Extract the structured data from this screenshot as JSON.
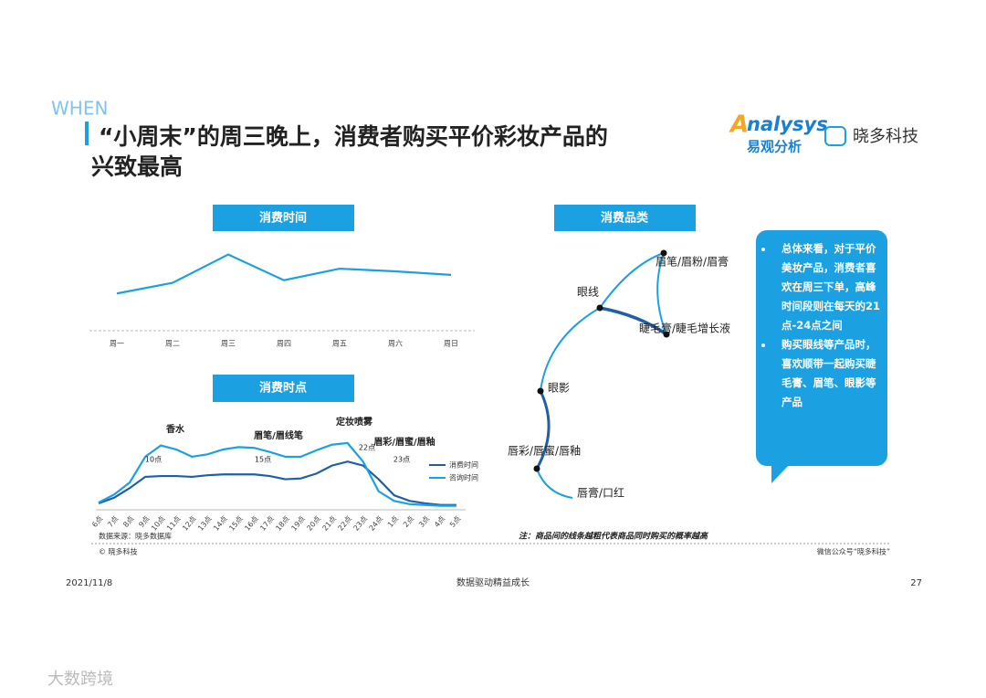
{
  "header": {
    "tag": "WHEN",
    "title_lines": [
      "“小周末”的周三晚上，消费者购买平价彩妆产品的",
      "兴致最高"
    ]
  },
  "logos": {
    "analysys_mark": "A",
    "analysys_name": "nalysys",
    "analysys_cn": "易观分析",
    "xiaoduo": "晓多科技"
  },
  "chart_data": [
    {
      "type": "line",
      "title": "消费时间",
      "categories": [
        "周一",
        "周二",
        "周三",
        "周四",
        "周五",
        "周六",
        "周日"
      ],
      "values": [
        42,
        54,
        86,
        57,
        70,
        67,
        63
      ],
      "color": "#1ba1e2",
      "ylim": [
        0,
        100
      ]
    },
    {
      "type": "line",
      "title": "消费时点",
      "categories": [
        "6点",
        "7点",
        "8点",
        "9点",
        "10点",
        "11点",
        "12点",
        "13点",
        "14点",
        "15点",
        "16点",
        "17点",
        "18点",
        "19点",
        "20点",
        "21点",
        "22点",
        "23点",
        "24点",
        "1点",
        "2点",
        "3点",
        "4点",
        "5点"
      ],
      "series": [
        {
          "name": "消费时间",
          "color": "#1f5fa8",
          "values": [
            8,
            15,
            27,
            41,
            42,
            42,
            41,
            43,
            44,
            44,
            44,
            42,
            38,
            39,
            45,
            55,
            60,
            55,
            38,
            18,
            11,
            8,
            6,
            6
          ]
        },
        {
          "name": "咨询时间",
          "color": "#1ba1e2",
          "values": [
            9,
            19,
            34,
            66,
            80,
            75,
            66,
            69,
            75,
            78,
            77,
            72,
            66,
            66,
            74,
            81,
            83,
            60,
            23,
            11,
            7,
            6,
            5,
            5
          ]
        }
      ],
      "ylim": [
        0,
        100
      ],
      "annotations": [
        "香水",
        "眉笔/眉线笔",
        "定妆喷雾",
        "眉彩/眉蜜/眉釉",
        "10点",
        "15点",
        "22点",
        "23点"
      ],
      "source": "数据来源：晓多数据库"
    }
  ],
  "diagram": {
    "title": "消费品类",
    "nodes": [
      "眉笔/眉粉/眉膏",
      "眼线",
      "睫毛膏/睫毛增长液",
      "眼影",
      "唇彩/唇蜜/唇釉",
      "唇膏/口红"
    ],
    "note": "注：商品间的线条越粗代表商品同时购买的概率越高"
  },
  "callout": {
    "bullets": [
      "总体来看，对于平价美妆产品，消费者喜欢在周三下单，高峰时间段则在每天的21点-24点之间",
      "购买眼线等产品时，喜欢顺带一起购买睫毛膏、眉笔、眼影等产品"
    ]
  },
  "footer": {
    "copyright": "© 晓多科技",
    "wechat": "微信公众号“晓多科技”",
    "date": "2021/11/8",
    "slogan": "数据驱动精益成长",
    "page": "27",
    "watermark": "大数跨境"
  }
}
